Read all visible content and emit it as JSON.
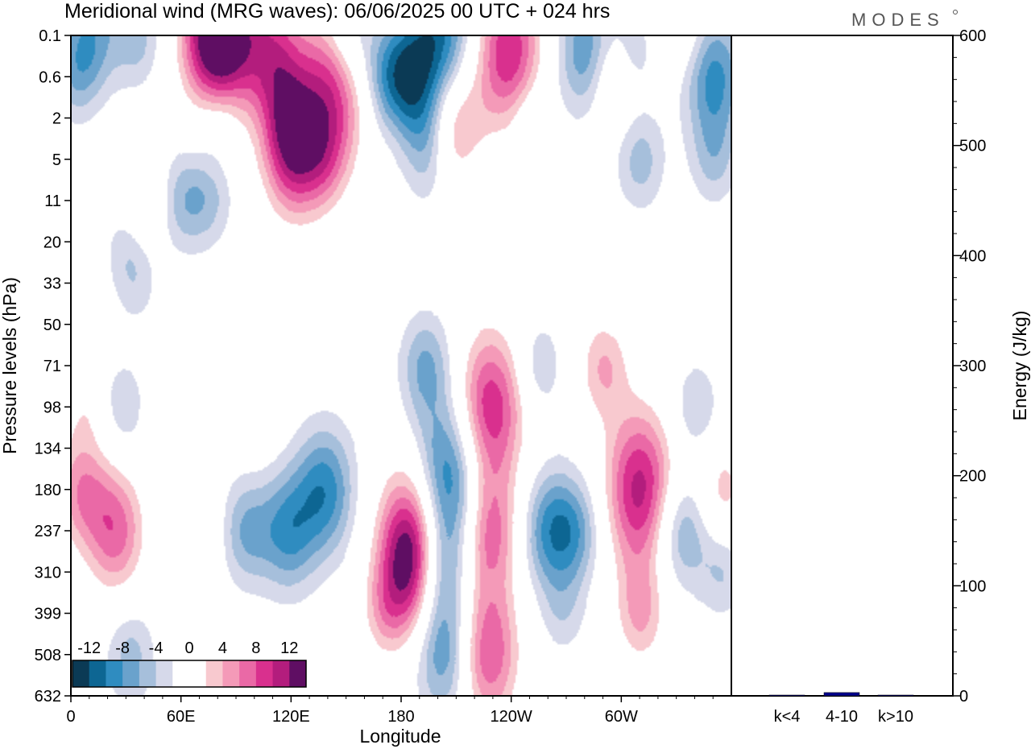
{
  "header": {
    "title": "Meridional wind (MRG waves):  06/06/2025  00 UTC  + 024 hrs",
    "logo": "MODES"
  },
  "chart_data": [
    {
      "type": "heatmap",
      "title": "Meridional wind (MRG waves):  06/06/2025  00 UTC  + 024 hrs",
      "xlabel": "Longitude",
      "ylabel": "Pressure levels (hPa)",
      "x_ticks": [
        "0",
        "60E",
        "120E",
        "180",
        "120W",
        "60W"
      ],
      "x_range_deg": [
        0,
        360
      ],
      "y_ticks": [
        "0.1",
        "0.6",
        "2",
        "5",
        "11",
        "20",
        "33",
        "50",
        "71",
        "98",
        "134",
        "180",
        "237",
        "310",
        "399",
        "508",
        "632"
      ],
      "colorbar": {
        "labels": [
          "-12",
          "-8",
          "-4",
          "0",
          "4",
          "8",
          "12"
        ],
        "levels": [
          -14,
          -12,
          -10,
          -8,
          -6,
          -4,
          -2,
          2,
          4,
          6,
          8,
          10,
          12,
          14
        ],
        "colors": [
          "#0b3a55",
          "#0d6693",
          "#2f8cc0",
          "#6aa2cc",
          "#a6bfdb",
          "#d6d9ea",
          "#ffffff",
          "#ffffff",
          "#f8c9cf",
          "#f49ab8",
          "#ea69a6",
          "#d9308e",
          "#b31d7d",
          "#5f0e63"
        ]
      },
      "features": [
        {
          "lon": 10,
          "level": "0.1",
          "amplitude": -7
        },
        {
          "lon": 35,
          "level": "0.1",
          "amplitude": -5
        },
        {
          "lon": 85,
          "level": "0.1",
          "amplitude": 12
        },
        {
          "lon": 75,
          "level": "0.1",
          "amplitude": 10
        },
        {
          "lon": 110,
          "level": "0.3",
          "amplitude": 9
        },
        {
          "lon": 143,
          "level": "0.6",
          "amplitude": 13
        },
        {
          "lon": 150,
          "level": "0.1",
          "amplitude": -8
        },
        {
          "lon": 172,
          "level": "0.6",
          "amplitude": -6
        },
        {
          "lon": 200,
          "level": "0.3",
          "amplitude": -13
        },
        {
          "lon": 183,
          "level": "0.6",
          "amplitude": -6
        },
        {
          "lon": 238,
          "level": "0.3",
          "amplitude": 12
        },
        {
          "lon": 280,
          "level": "0.3",
          "amplitude": -8
        },
        {
          "lon": 305,
          "level": "0.3",
          "amplitude": -4
        },
        {
          "lon": 350,
          "level": "0.6",
          "amplitude": -9
        },
        {
          "lon": 2,
          "level": "0.6",
          "amplitude": -4
        },
        {
          "lon": 295,
          "level": "0.6",
          "amplitude": 5
        },
        {
          "lon": 335,
          "level": "0.1",
          "amplitude": 3
        },
        {
          "lon": 80,
          "level": "2",
          "amplitude": -3
        },
        {
          "lon": 118,
          "level": "2",
          "amplitude": 7
        },
        {
          "lon": 192,
          "level": "2",
          "amplitude": -3
        },
        {
          "lon": 207,
          "level": "2",
          "amplitude": 10
        },
        {
          "lon": 250,
          "level": "2",
          "amplitude": -3
        },
        {
          "lon": 310,
          "level": "5",
          "amplitude": -5
        },
        {
          "lon": 350,
          "level": "5",
          "amplitude": -4
        },
        {
          "lon": 120,
          "level": "5",
          "amplitude": 9
        },
        {
          "lon": 137,
          "level": "5",
          "amplitude": 6
        },
        {
          "lon": 60,
          "level": "11",
          "amplitude": -5
        },
        {
          "lon": 75,
          "level": "11",
          "amplitude": -4
        },
        {
          "lon": 40,
          "level": "11",
          "amplitude": 4
        },
        {
          "lon": 195,
          "level": "5",
          "amplitude": -5
        },
        {
          "lon": 225,
          "level": "11",
          "amplitude": -3
        },
        {
          "lon": 225,
          "level": "20",
          "amplitude": 3
        },
        {
          "lon": 30,
          "level": "20",
          "amplitude": -3
        },
        {
          "lon": 35,
          "level": "33",
          "amplitude": -3
        },
        {
          "lon": 8,
          "level": "98",
          "amplitude": 3
        },
        {
          "lon": 28,
          "level": "98",
          "amplitude": -4
        },
        {
          "lon": 55,
          "level": "98",
          "amplitude": 3
        },
        {
          "lon": 100,
          "level": "98",
          "amplitude": 3
        },
        {
          "lon": 5,
          "level": "180",
          "amplitude": 7
        },
        {
          "lon": 24,
          "level": "237",
          "amplitude": 9
        },
        {
          "lon": 68,
          "level": "237",
          "amplitude": 4
        },
        {
          "lon": 95,
          "level": "237",
          "amplitude": -6
        },
        {
          "lon": 118,
          "level": "237",
          "amplitude": -8
        },
        {
          "lon": 138,
          "level": "180",
          "amplitude": -9
        },
        {
          "lon": 188,
          "level": "237",
          "amplitude": 13
        },
        {
          "lon": 183,
          "level": "310",
          "amplitude": 9
        },
        {
          "lon": 193,
          "level": "71",
          "amplitude": -6
        },
        {
          "lon": 204,
          "level": "180",
          "amplitude": -14
        },
        {
          "lon": 200,
          "level": "310",
          "amplitude": -7
        },
        {
          "lon": 203,
          "level": "508",
          "amplitude": -8
        },
        {
          "lon": 228,
          "level": "98",
          "amplitude": 12
        },
        {
          "lon": 227,
          "level": "237",
          "amplitude": 10
        },
        {
          "lon": 227,
          "level": "508",
          "amplitude": 10
        },
        {
          "lon": 255,
          "level": "71",
          "amplitude": -4
        },
        {
          "lon": 260,
          "level": "237",
          "amplitude": -8
        },
        {
          "lon": 275,
          "level": "237",
          "amplitude": -6
        },
        {
          "lon": 290,
          "level": "71",
          "amplitude": 6
        },
        {
          "lon": 310,
          "level": "180",
          "amplitude": 13
        },
        {
          "lon": 310,
          "level": "399",
          "amplitude": 6
        },
        {
          "lon": 332,
          "level": "237",
          "amplitude": -7
        },
        {
          "lon": 340,
          "level": "98",
          "amplitude": -4
        },
        {
          "lon": 355,
          "level": "180",
          "amplitude": 5
        },
        {
          "lon": 355,
          "level": "310",
          "amplitude": -4
        },
        {
          "lon": 268,
          "level": "399",
          "amplitude": -3
        },
        {
          "lon": 32,
          "level": "508",
          "amplitude": -5
        },
        {
          "lon": 170,
          "level": "399",
          "amplitude": 4
        }
      ]
    },
    {
      "type": "bar",
      "ylabel": "Energy (J/kg)",
      "categories": [
        "k<4",
        "4-10",
        "k>10"
      ],
      "values": [
        0.5,
        3,
        0.3
      ],
      "ylim": [
        0,
        600
      ],
      "y_ticks": [
        "0",
        "100",
        "200",
        "300",
        "400",
        "500",
        "600"
      ],
      "bar_color": "#00008b"
    }
  ]
}
